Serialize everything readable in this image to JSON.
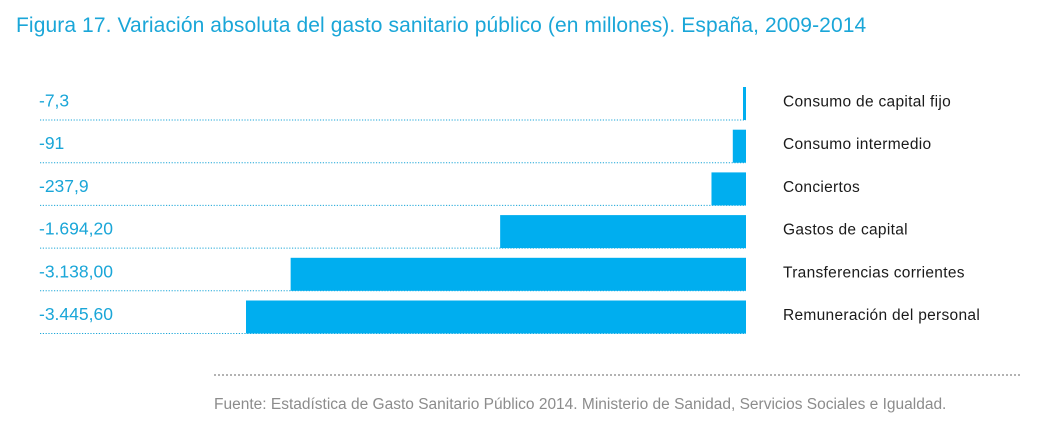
{
  "title": "Figura 17. Variación absoluta del gasto sanitario público (en millones). España, 2009-2014",
  "source": "Fuente: Estadística de Gasto Sanitario Público 2014. Ministerio de Sanidad, Servicios Sociales e Igualdad.",
  "colors": {
    "bar": "#00aeef",
    "value_text": "#1aa6d8",
    "title": "#1aa6d8",
    "category_text": "#1a1a1a",
    "source": "#8c8c8c"
  },
  "chart_data": {
    "type": "bar",
    "orientation": "horizontal",
    "categories": [
      "Consumo de capital fijo",
      "Consumo intermedio",
      "Conciertos",
      "Gastos de capital",
      "Transferencias corrientes",
      "Remuneración del personal"
    ],
    "values": [
      -7.3,
      -91,
      -237.9,
      -1694.2,
      -3138.0,
      -3445.6
    ],
    "value_labels": [
      "-7,3",
      "-91",
      "-237,9",
      "-1.694,20",
      "-3.138,00",
      "-3.445,60"
    ],
    "xlim": [
      -3445.6,
      0
    ],
    "grid": false,
    "legend": "none"
  }
}
